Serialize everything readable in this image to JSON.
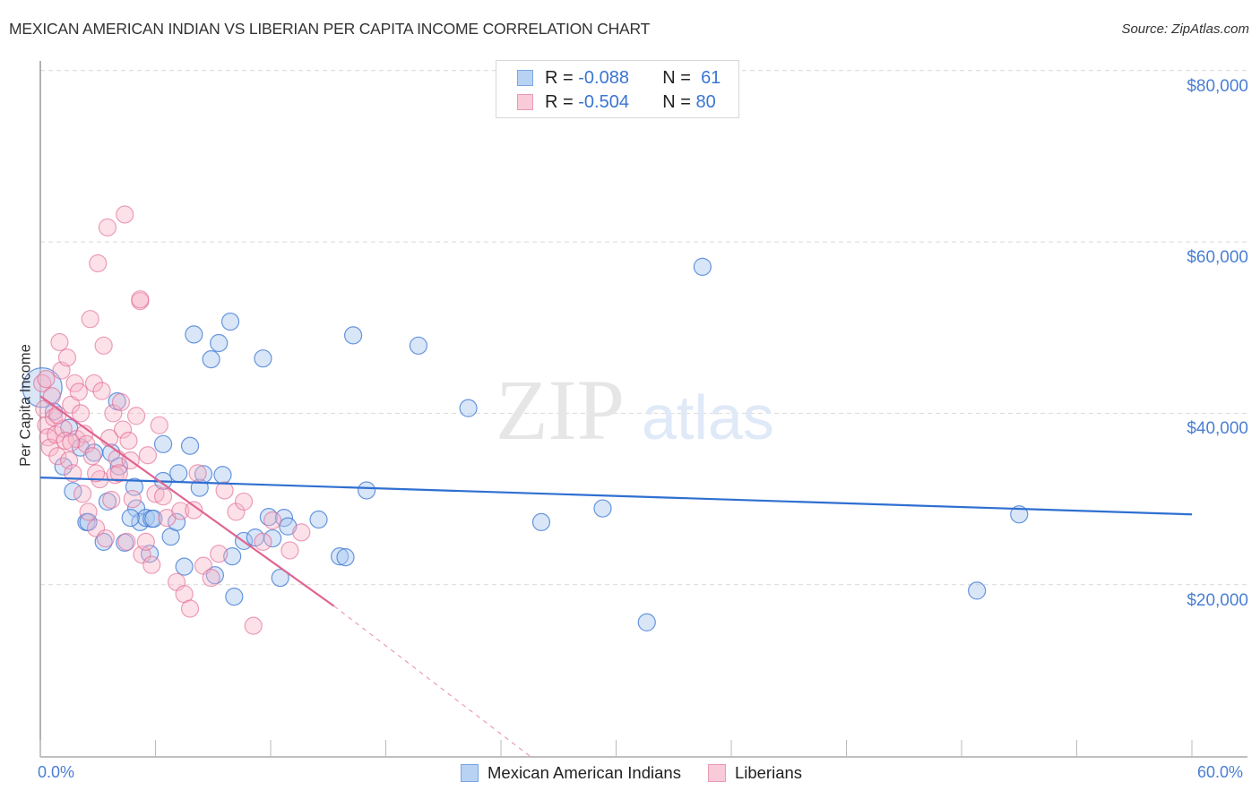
{
  "header": {
    "title": "MEXICAN AMERICAN INDIAN VS LIBERIAN PER CAPITA INCOME CORRELATION CHART",
    "source": "Source: ZipAtlas.com"
  },
  "legend_top": {
    "rows": [
      {
        "r_label": "R =",
        "r_value": "-0.088",
        "n_label": "N =",
        "n_value": "61",
        "color": "#a9c8f0",
        "border": "#7aa6e3"
      },
      {
        "r_label": "R =",
        "r_value": "-0.504",
        "n_label": "N =",
        "n_value": "80",
        "color": "#f7c3d3",
        "border": "#e99ab4"
      }
    ]
  },
  "axes": {
    "y_label": "Per Capita Income",
    "y_ticks": [
      "$80,000",
      "$60,000",
      "$40,000",
      "$20,000"
    ],
    "x_min_label": "0.0%",
    "x_max_label": "60.0%"
  },
  "legend_bottom": {
    "items": [
      {
        "label": "Mexican American Indians",
        "color": "#b8d2f4",
        "border": "#7aa6e3"
      },
      {
        "label": "Liberians",
        "color": "#f9cad8",
        "border": "#e99ab4"
      }
    ]
  },
  "watermark": {
    "zip": "ZIP",
    "atlas": "atlas"
  },
  "colors": {
    "blue": "#3a75d3",
    "pink": "#e0648f",
    "axis_text": "#4a7fd4"
  },
  "chart_data": {
    "type": "scatter",
    "title": "MEXICAN AMERICAN INDIAN VS LIBERIAN PER CAPITA INCOME CORRELATION CHART",
    "xlabel": "",
    "ylabel": "Per Capita Income",
    "xlim": [
      0,
      60
    ],
    "ylim": [
      0,
      80000
    ],
    "x_unit": "%",
    "y_ticks": [
      20000,
      40000,
      60000,
      80000
    ],
    "grid": true,
    "legend_position": "top-center",
    "series": [
      {
        "name": "Mexican American Indians",
        "color": "#3a75d3",
        "R": -0.088,
        "N": 61,
        "trend": {
          "x": [
            0,
            60
          ],
          "y": [
            32500,
            28200
          ]
        },
        "points": [
          [
            0.1,
            43000
          ],
          [
            1.2,
            33800
          ],
          [
            1.7,
            30900
          ],
          [
            2.1,
            36000
          ],
          [
            2.4,
            27300
          ],
          [
            2.5,
            27300
          ],
          [
            3.3,
            25000
          ],
          [
            3.5,
            29700
          ],
          [
            3.7,
            35400
          ],
          [
            4.0,
            41400
          ],
          [
            4.1,
            33800
          ],
          [
            4.4,
            24900
          ],
          [
            4.9,
            31400
          ],
          [
            5.0,
            28900
          ],
          [
            5.2,
            27300
          ],
          [
            5.5,
            27800
          ],
          [
            5.8,
            27700
          ],
          [
            5.7,
            23600
          ],
          [
            5.9,
            27700
          ],
          [
            6.4,
            36400
          ],
          [
            6.4,
            32100
          ],
          [
            6.8,
            25600
          ],
          [
            7.1,
            27300
          ],
          [
            7.2,
            33000
          ],
          [
            7.5,
            22100
          ],
          [
            7.8,
            36200
          ],
          [
            8.0,
            49200
          ],
          [
            8.3,
            31300
          ],
          [
            8.5,
            32900
          ],
          [
            8.9,
            46300
          ],
          [
            9.1,
            21100
          ],
          [
            9.3,
            48200
          ],
          [
            9.5,
            32800
          ],
          [
            9.9,
            50700
          ],
          [
            10.0,
            23300
          ],
          [
            10.1,
            18600
          ],
          [
            10.6,
            25100
          ],
          [
            11.2,
            25500
          ],
          [
            11.6,
            46400
          ],
          [
            11.9,
            27900
          ],
          [
            12.1,
            25400
          ],
          [
            12.5,
            20800
          ],
          [
            12.7,
            27800
          ],
          [
            12.9,
            26800
          ],
          [
            14.5,
            27600
          ],
          [
            15.6,
            23300
          ],
          [
            15.9,
            23200
          ],
          [
            16.3,
            49100
          ],
          [
            17.0,
            31000
          ],
          [
            19.7,
            47900
          ],
          [
            22.3,
            40600
          ],
          [
            26.1,
            27300
          ],
          [
            29.3,
            28900
          ],
          [
            31.6,
            15600
          ],
          [
            34.5,
            57100
          ],
          [
            48.8,
            19300
          ],
          [
            51.0,
            28200
          ],
          [
            2.8,
            35400
          ],
          [
            1.5,
            38300
          ],
          [
            0.7,
            40200
          ],
          [
            4.7,
            27800
          ]
        ]
      },
      {
        "name": "Liberians",
        "color": "#e0648f",
        "R": -0.504,
        "N": 80,
        "trend": {
          "x": [
            0,
            15.3
          ],
          "y": [
            42000,
            17500
          ],
          "dashed_extension": {
            "x": [
              15.3,
              25.5
            ],
            "y": [
              17500,
              0
            ]
          }
        },
        "points": [
          [
            0.1,
            43500
          ],
          [
            0.2,
            40500
          ],
          [
            0.3,
            38600
          ],
          [
            0.4,
            37200
          ],
          [
            0.5,
            36000
          ],
          [
            0.6,
            42000
          ],
          [
            0.7,
            39500
          ],
          [
            0.8,
            37500
          ],
          [
            0.9,
            35000
          ],
          [
            1.0,
            48300
          ],
          [
            1.1,
            45000
          ],
          [
            1.2,
            38200
          ],
          [
            1.3,
            36800
          ],
          [
            1.4,
            46500
          ],
          [
            1.5,
            34500
          ],
          [
            1.6,
            41000
          ],
          [
            1.7,
            33000
          ],
          [
            1.8,
            43500
          ],
          [
            1.9,
            37000
          ],
          [
            2.0,
            42500
          ],
          [
            2.1,
            40000
          ],
          [
            2.2,
            30600
          ],
          [
            2.3,
            37600
          ],
          [
            2.4,
            36400
          ],
          [
            2.5,
            28500
          ],
          [
            2.6,
            51000
          ],
          [
            2.7,
            35000
          ],
          [
            2.8,
            43500
          ],
          [
            2.9,
            26600
          ],
          [
            3.0,
            57500
          ],
          [
            3.1,
            32300
          ],
          [
            3.2,
            42600
          ],
          [
            3.3,
            47900
          ],
          [
            3.4,
            25400
          ],
          [
            3.5,
            61700
          ],
          [
            3.6,
            37100
          ],
          [
            3.7,
            29900
          ],
          [
            3.8,
            40000
          ],
          [
            3.9,
            32800
          ],
          [
            4.0,
            34700
          ],
          [
            4.1,
            33000
          ],
          [
            4.2,
            41300
          ],
          [
            4.3,
            38100
          ],
          [
            4.4,
            63200
          ],
          [
            4.5,
            25000
          ],
          [
            4.6,
            36800
          ],
          [
            4.7,
            34500
          ],
          [
            4.8,
            30000
          ],
          [
            5.0,
            39700
          ],
          [
            5.2,
            53100
          ],
          [
            5.3,
            23500
          ],
          [
            5.5,
            25000
          ],
          [
            5.6,
            35100
          ],
          [
            5.8,
            22300
          ],
          [
            6.0,
            30600
          ],
          [
            6.2,
            38600
          ],
          [
            6.4,
            30300
          ],
          [
            6.6,
            27800
          ],
          [
            7.1,
            20300
          ],
          [
            7.3,
            28600
          ],
          [
            7.5,
            18900
          ],
          [
            7.8,
            17200
          ],
          [
            8.0,
            28700
          ],
          [
            8.2,
            33000
          ],
          [
            8.5,
            22200
          ],
          [
            8.9,
            20800
          ],
          [
            9.3,
            23600
          ],
          [
            9.6,
            31000
          ],
          [
            10.2,
            28500
          ],
          [
            10.6,
            29700
          ],
          [
            11.1,
            15200
          ],
          [
            11.6,
            25000
          ],
          [
            12.1,
            27500
          ],
          [
            13.0,
            24000
          ],
          [
            13.6,
            26100
          ],
          [
            0.3,
            44000
          ],
          [
            0.9,
            39800
          ],
          [
            1.6,
            36600
          ],
          [
            2.9,
            33000
          ],
          [
            5.2,
            53300
          ]
        ]
      }
    ]
  }
}
